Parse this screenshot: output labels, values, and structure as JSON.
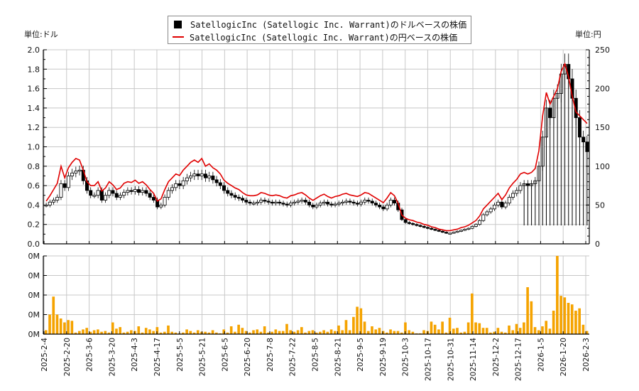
{
  "legend": {
    "usd_label": "SatellogicInc (Satellogic Inc. Warrant)のドルベースの株価",
    "jpy_label": "SatellogicInc (Satellogic Inc. Warrant)の円ベースの株価"
  },
  "units": {
    "left": "単位:ドル",
    "right": "単位:円"
  },
  "colors": {
    "candle": "#000000",
    "jpy_line": "#e00000",
    "volume": "#f5a300",
    "grid": "#c8c8c8"
  },
  "chart_data": {
    "type": "candlestick+line+bar",
    "title": "SatellogicInc (Satellogic Inc. Warrant)",
    "legend": [
      "SatellogicInc (Satellogic Inc. Warrant)のドルベースの株価",
      "SatellogicInc (Satellogic Inc. Warrant)の円ベースの株価"
    ],
    "legend_position": "top-center",
    "grid": true,
    "y_left": {
      "label": "単位:ドル",
      "range": [
        0,
        2.0
      ],
      "ticks": [
        "0.0",
        "0.2",
        "0.4",
        "0.6",
        "0.8",
        "1.0",
        "1.2",
        "1.4",
        "1.6",
        "1.8",
        "2.0"
      ]
    },
    "y_right": {
      "label": "単位:円",
      "range": [
        0,
        250
      ],
      "ticks": [
        "0",
        "50",
        "100",
        "150",
        "200",
        "250"
      ]
    },
    "y_volume": {
      "ticks": [
        "0M",
        "0M",
        "0M",
        "0M",
        "0M"
      ]
    },
    "x_ticks": [
      "2025-2-4",
      "2025-2-20",
      "2025-3-6",
      "2025-3-20",
      "2025-4-3",
      "2025-4-17",
      "2025-5-5",
      "2025-5-21",
      "2025-6-5",
      "2025-6-20",
      "2025-7-8",
      "2025-7-22",
      "2025-8-5",
      "2025-8-21",
      "2025-9-5",
      "2025-9-19",
      "2025-10-3",
      "2025-10-17",
      "2025-10-31",
      "2025-11-14",
      "2025-12-2",
      "2025-12-17",
      "2026-1-5",
      "2026-1-20",
      "2026-2-3"
    ],
    "usd_close": [
      0.4,
      0.43,
      0.45,
      0.48,
      0.62,
      0.58,
      0.7,
      0.73,
      0.75,
      0.76,
      0.65,
      0.55,
      0.5,
      0.5,
      0.55,
      0.45,
      0.5,
      0.55,
      0.52,
      0.48,
      0.5,
      0.53,
      0.55,
      0.54,
      0.56,
      0.53,
      0.55,
      0.52,
      0.48,
      0.45,
      0.38,
      0.4,
      0.48,
      0.55,
      0.58,
      0.62,
      0.6,
      0.65,
      0.68,
      0.7,
      0.72,
      0.7,
      0.72,
      0.68,
      0.7,
      0.66,
      0.63,
      0.6,
      0.55,
      0.52,
      0.5,
      0.48,
      0.47,
      0.45,
      0.43,
      0.42,
      0.42,
      0.43,
      0.45,
      0.44,
      0.43,
      0.42,
      0.43,
      0.42,
      0.41,
      0.4,
      0.42,
      0.43,
      0.44,
      0.45,
      0.43,
      0.4,
      0.38,
      0.4,
      0.42,
      0.43,
      0.41,
      0.4,
      0.41,
      0.42,
      0.43,
      0.44,
      0.43,
      0.42,
      0.41,
      0.43,
      0.45,
      0.44,
      0.42,
      0.4,
      0.38,
      0.36,
      0.4,
      0.45,
      0.42,
      0.35,
      0.25,
      0.22,
      0.21,
      0.2,
      0.19,
      0.18,
      0.17,
      0.16,
      0.15,
      0.14,
      0.13,
      0.12,
      0.11,
      0.11,
      0.12,
      0.13,
      0.14,
      0.15,
      0.16,
      0.18,
      0.2,
      0.24,
      0.3,
      0.33,
      0.36,
      0.4,
      0.43,
      0.38,
      0.42,
      0.48,
      0.52,
      0.55,
      0.6,
      0.62,
      0.6,
      0.62,
      0.65,
      0.8,
      1.1,
      1.4,
      1.3,
      1.5,
      1.55,
      1.75,
      1.85,
      1.7,
      1.5,
      1.3,
      1.1,
      1.05,
      0.95
    ],
    "jpy_close": [
      55,
      62,
      70,
      78,
      100,
      85,
      98,
      105,
      110,
      108,
      95,
      80,
      75,
      75,
      80,
      68,
      72,
      80,
      76,
      70,
      72,
      78,
      80,
      79,
      82,
      78,
      80,
      76,
      70,
      65,
      55,
      58,
      70,
      80,
      85,
      90,
      88,
      95,
      100,
      105,
      108,
      105,
      110,
      100,
      103,
      98,
      95,
      90,
      82,
      78,
      75,
      72,
      70,
      66,
      63,
      62,
      62,
      63,
      66,
      65,
      63,
      62,
      63,
      62,
      60,
      59,
      62,
      63,
      65,
      66,
      63,
      59,
      56,
      59,
      62,
      64,
      61,
      59,
      61,
      62,
      64,
      65,
      63,
      62,
      61,
      63,
      66,
      65,
      62,
      59,
      56,
      53,
      59,
      66,
      62,
      52,
      37,
      33,
      31,
      30,
      28,
      27,
      25,
      24,
      22,
      21,
      19,
      18,
      17,
      17,
      18,
      19,
      21,
      22,
      24,
      27,
      30,
      36,
      45,
      50,
      55,
      60,
      65,
      57,
      63,
      72,
      78,
      83,
      90,
      92,
      90,
      92,
      97,
      120,
      165,
      195,
      180,
      190,
      200,
      222,
      232,
      215,
      190,
      170,
      165,
      160,
      155
    ],
    "volume_relative": [
      0.05,
      0.25,
      0.48,
      0.25,
      0.2,
      0.15,
      0.18,
      0.17,
      0.02,
      0.04,
      0.06,
      0.08,
      0.03,
      0.05,
      0.06,
      0.03,
      0.04,
      0.02,
      0.15,
      0.07,
      0.09,
      0.02,
      0.03,
      0.05,
      0.04,
      0.1,
      0.02,
      0.08,
      0.06,
      0.04,
      0.09,
      0.02,
      0.03,
      0.11,
      0.03,
      0.02,
      0.01,
      0.02,
      0.06,
      0.04,
      0.02,
      0.05,
      0.03,
      0.03,
      0.02,
      0.05,
      0.02,
      0.01,
      0.06,
      0.02,
      0.1,
      0.03,
      0.12,
      0.08,
      0.04,
      0.02,
      0.05,
      0.06,
      0.03,
      0.1,
      0.02,
      0.03,
      0.06,
      0.04,
      0.04,
      0.13,
      0.05,
      0.03,
      0.05,
      0.09,
      0.02,
      0.04,
      0.05,
      0.02,
      0.03,
      0.05,
      0.03,
      0.06,
      0.04,
      0.11,
      0.05,
      0.18,
      0.05,
      0.22,
      0.35,
      0.33,
      0.16,
      0.04,
      0.1,
      0.06,
      0.08,
      0.04,
      0.02,
      0.06,
      0.04,
      0.04,
      0.02,
      0.15,
      0.05,
      0.03,
      0.01,
      0.01,
      0.05,
      0.04,
      0.16,
      0.12,
      0.06,
      0.16,
      0.02,
      0.21,
      0.07,
      0.08,
      0.02,
      0.03,
      0.15,
      0.52,
      0.15,
      0.14,
      0.08,
      0.08,
      0.02,
      0.03,
      0.08,
      0.03,
      0.02,
      0.11,
      0.05,
      0.13,
      0.08,
      0.15,
      0.6,
      0.42,
      0.09,
      0.05,
      0.1,
      0.17,
      0.07,
      0.3,
      1.0,
      0.49,
      0.47,
      0.4,
      0.38,
      0.3,
      0.33,
      0.12,
      0.04
    ]
  }
}
